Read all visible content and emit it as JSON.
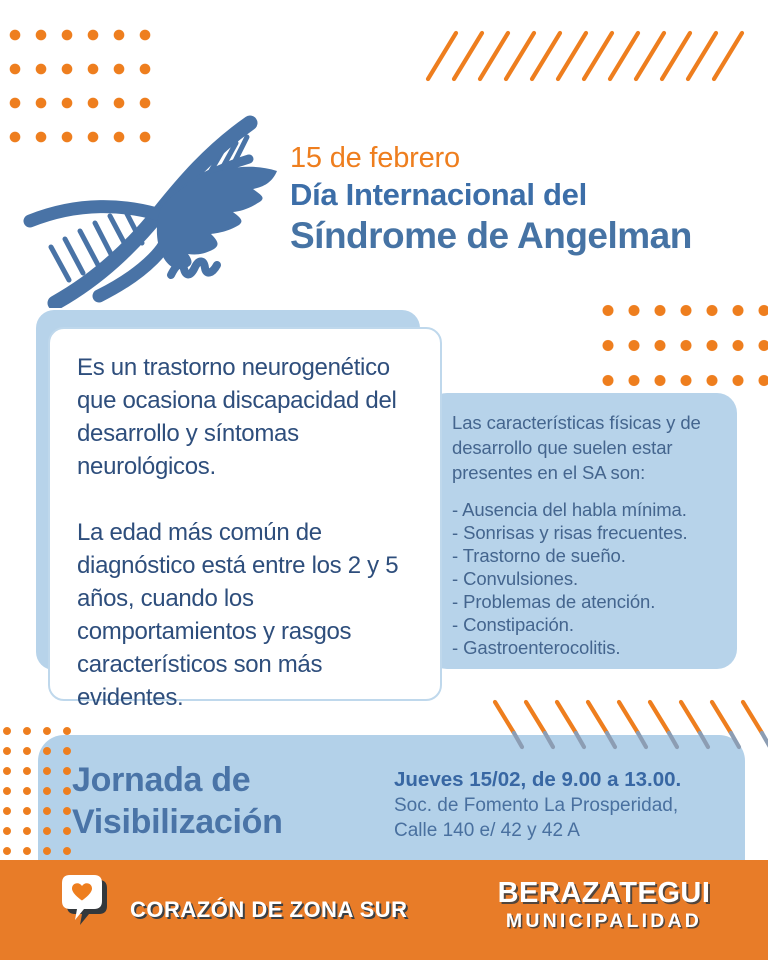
{
  "header": {
    "date": "15 de febrero",
    "title_line1": "Día Internacional del",
    "title_line2": "Síndrome de Angelman"
  },
  "description_card": {
    "paragraph1": "Es un trastorno neurogenético que ocasiona discapacidad del desarrollo y síntomas neurológicos.",
    "paragraph2": "La edad más común de diagnóstico está entre los 2 y 5 años, cuando los comportamientos y rasgos característicos son más evidentes."
  },
  "characteristics_card": {
    "intro": "Las características físicas y de desarrollo que suelen estar presentes en el SA son:",
    "items": [
      "- Ausencia del habla mínima.",
      "- Sonrisas y risas frecuentes.",
      "- Trastorno de sueño.",
      "- Convulsiones.",
      "- Problemas de atención.",
      "- Constipación.",
      "- Gastroenterocolitis."
    ]
  },
  "event_band": {
    "title_line1": "Jornada de",
    "title_line2": "Visibilización",
    "schedule": "Jueves 15/02, de 9.00 a 13.00.",
    "venue": "Soc. de Fomento La Prosperidad,",
    "address": "Calle 140 e/ 42 y 42 A"
  },
  "footer": {
    "slogan": "CORAZÓN DE ZONA SUR",
    "brand_name": "BERAZATEGUI",
    "brand_subtitle": "MUNICIPALIDAD"
  },
  "icons": {
    "logo": "dna-angel-wing-logo",
    "footer_badge": "heart-speech-bubble-icon"
  },
  "colors": {
    "accent_orange": "#EE7E1E",
    "footer_orange": "#E87C28",
    "brand_blue": "#4973A6",
    "text_navy": "#2E4E7C",
    "card_light_blue": "#B7D3EA",
    "stripe_muted_blue": "#8C9DB3"
  }
}
